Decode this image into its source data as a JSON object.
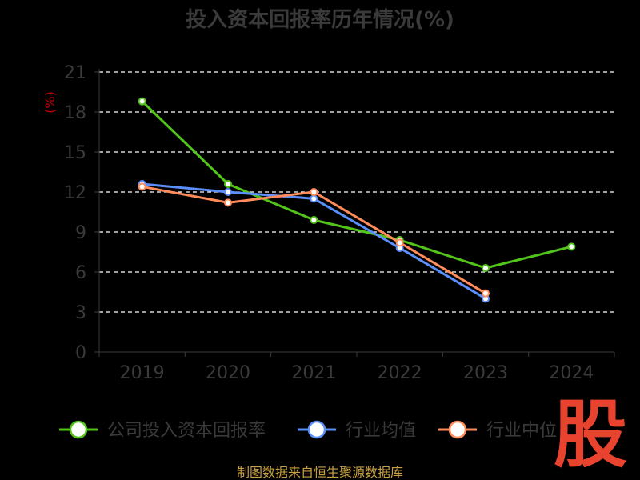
{
  "title": "投入资本回报率历年情况(%)",
  "source": "制图数据来自恒生聚源数据库",
  "watermark": "股",
  "chart_data": {
    "type": "line",
    "title": "投入资本回报率历年情况(%)",
    "ylabel": "(%)",
    "xlabel": "",
    "categories": [
      "2019",
      "2020",
      "2021",
      "2022",
      "2023",
      "2024"
    ],
    "ylim": [
      0,
      21
    ],
    "yticks": [
      0,
      3,
      6,
      9,
      12,
      15,
      18,
      21
    ],
    "grid": true,
    "legend_position": "bottom",
    "series": [
      {
        "name": "公司投入资本回报率",
        "color": "#52c41a",
        "values": [
          18.8,
          12.6,
          9.9,
          8.4,
          6.3,
          7.9
        ]
      },
      {
        "name": "行业均值",
        "color": "#5b8ff9",
        "values": [
          12.6,
          12.0,
          11.5,
          7.8,
          4.0,
          null
        ]
      },
      {
        "name": "行业中位",
        "color": "#ff8c5a",
        "values": [
          12.4,
          11.2,
          12.0,
          8.2,
          4.4,
          null
        ]
      }
    ]
  }
}
